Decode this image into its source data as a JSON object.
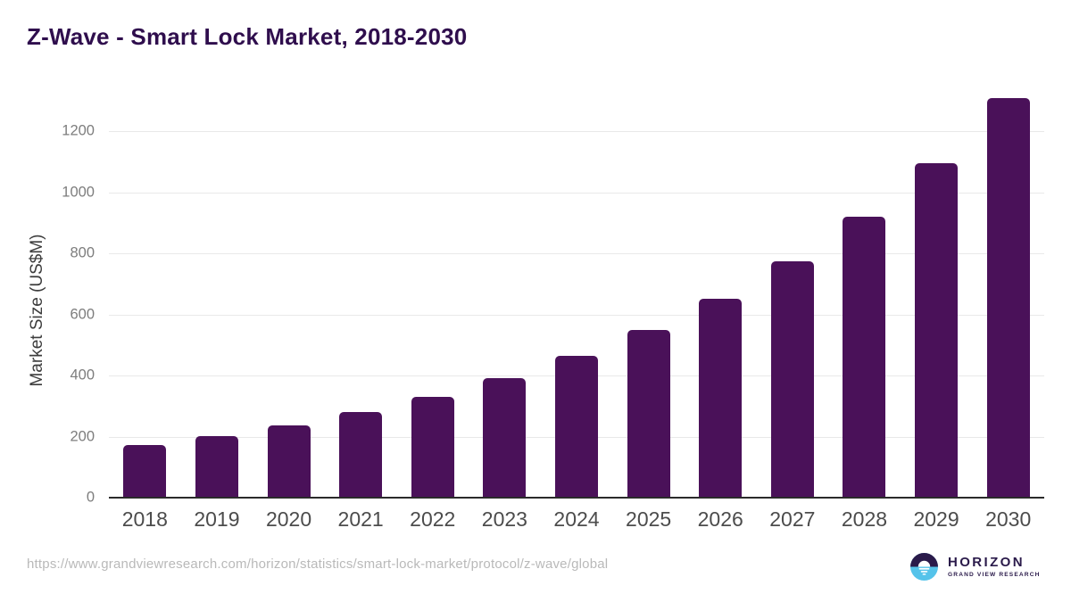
{
  "chart_data": {
    "type": "bar",
    "title": "Z-Wave - Smart Lock Market, 2018-2030",
    "categories": [
      "2018",
      "2019",
      "2020",
      "2021",
      "2022",
      "2023",
      "2024",
      "2025",
      "2026",
      "2027",
      "2028",
      "2029",
      "2030"
    ],
    "values": [
      172,
      201,
      236,
      281,
      330,
      392,
      465,
      548,
      653,
      774,
      920,
      1096,
      1310
    ],
    "xlabel": "",
    "ylabel": "Market Size (US$M)",
    "ylim": [
      0,
      1350
    ],
    "yticks": [
      0,
      200,
      400,
      600,
      800,
      1000,
      1200
    ],
    "grid": true,
    "legend": false,
    "bar_color": "#4a1159",
    "gridline_color": "#e9e9e9",
    "axis_line_color": "#2b2b2b"
  },
  "footer": {
    "source_url": "https://www.grandviewresearch.com/horizon/statistics/smart-lock-market/protocol/z-wave/global",
    "logo": {
      "brand": "HORIZON",
      "sub_brand": "GRAND VIEW RESEARCH",
      "dark_color": "#2a1a4a",
      "blue_color": "#55c3ea"
    }
  }
}
